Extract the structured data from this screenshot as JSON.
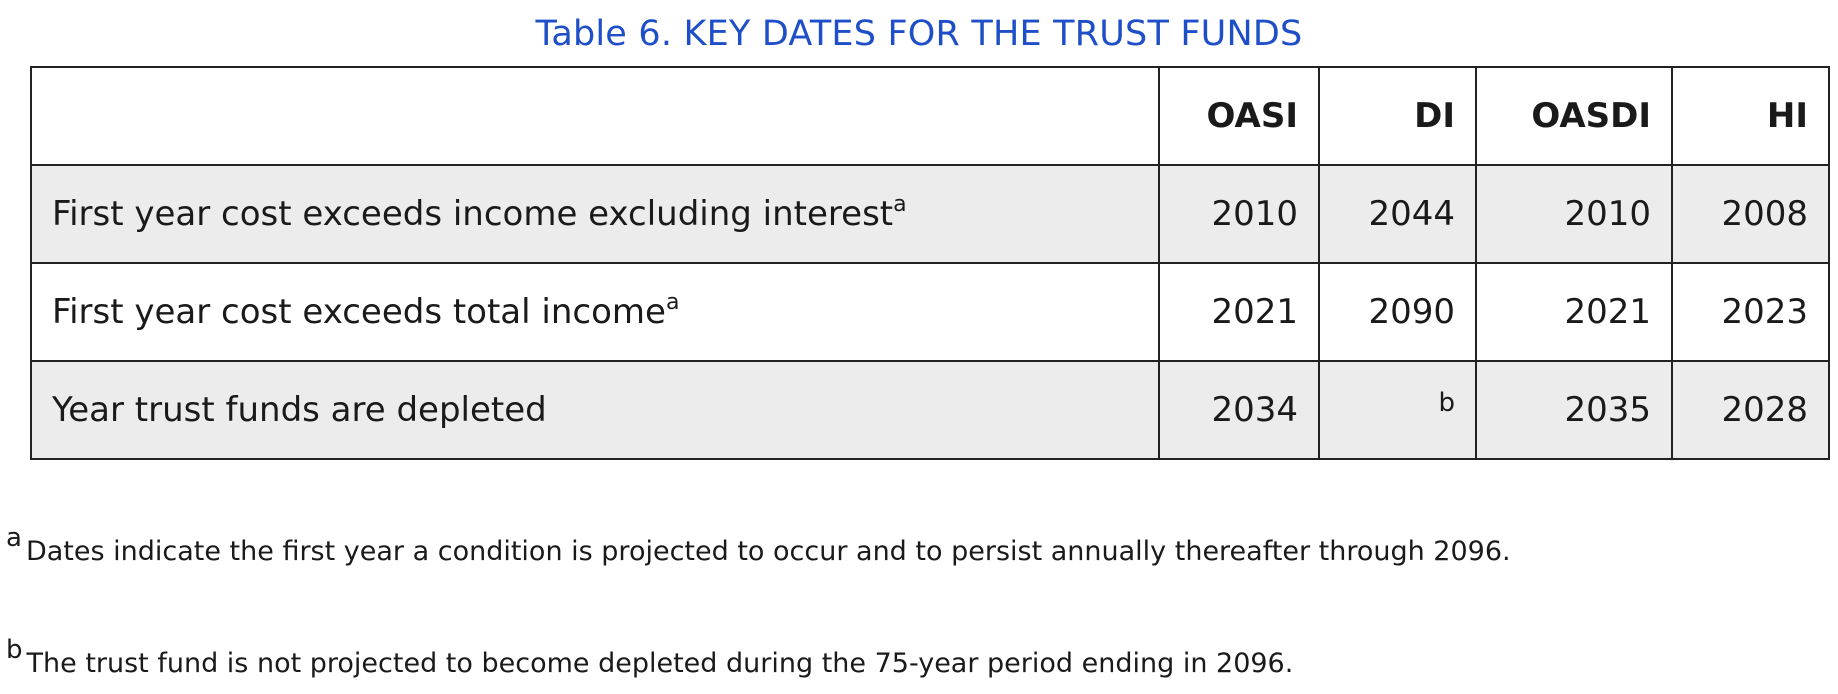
{
  "title": "Table 6. KEY DATES FOR THE TRUST FUNDS",
  "table": {
    "columns": [
      "",
      "OASI",
      "DI",
      "OASDI",
      "HI"
    ],
    "rows": [
      {
        "label": "First year cost exceeds income excluding interest",
        "label_note": "a",
        "values": [
          "2010",
          "2044",
          "2010",
          "2008"
        ]
      },
      {
        "label": "First year cost exceeds total income",
        "label_note": "a",
        "values": [
          "2021",
          "2090",
          "2021",
          "2023"
        ]
      },
      {
        "label": "Year trust funds are depleted",
        "label_note": "",
        "values": [
          "2034",
          "",
          "2035",
          "2028"
        ],
        "di_note": "b"
      }
    ]
  },
  "footnotes": [
    {
      "mark": "a",
      "text": "Dates indicate the first year a condition is projected to occur and to persist annually thereafter through 2096."
    },
    {
      "mark": "b",
      "text": "The trust fund is not projected to become depleted during the 75-year period ending in 2096."
    }
  ]
}
